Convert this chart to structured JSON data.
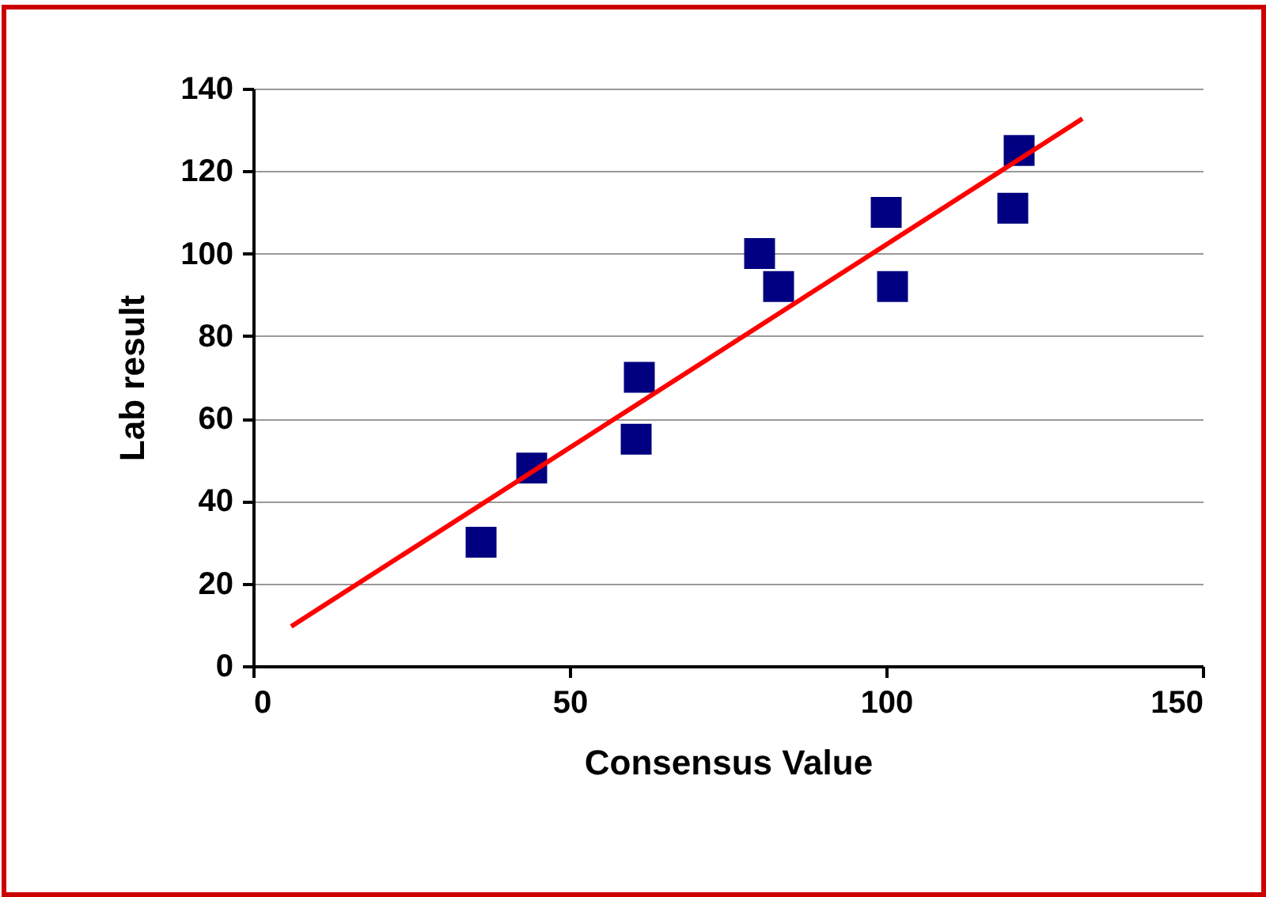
{
  "chart_data": {
    "type": "scatter",
    "xlabel": "Consensus Value",
    "ylabel": "Lab result",
    "xlim": [
      0,
      150
    ],
    "xticks": [
      0,
      50,
      100,
      150
    ],
    "ylim": [
      0,
      140
    ],
    "yticks": [
      0,
      20,
      40,
      60,
      80,
      100,
      120,
      140
    ],
    "grid": "y",
    "series": [
      {
        "color": "#000080",
        "marker": "square",
        "x": [
          36,
          44,
          60.5,
          61,
          80,
          83,
          100,
          101,
          120,
          121
        ],
        "values": [
          30,
          48,
          55,
          70,
          100,
          92,
          110,
          92,
          111,
          125
        ]
      },
      {
        "type": "line",
        "color": "#ff0000",
        "x": [
          6,
          131
        ],
        "values": [
          9.6,
          132.7
        ]
      }
    ]
  }
}
